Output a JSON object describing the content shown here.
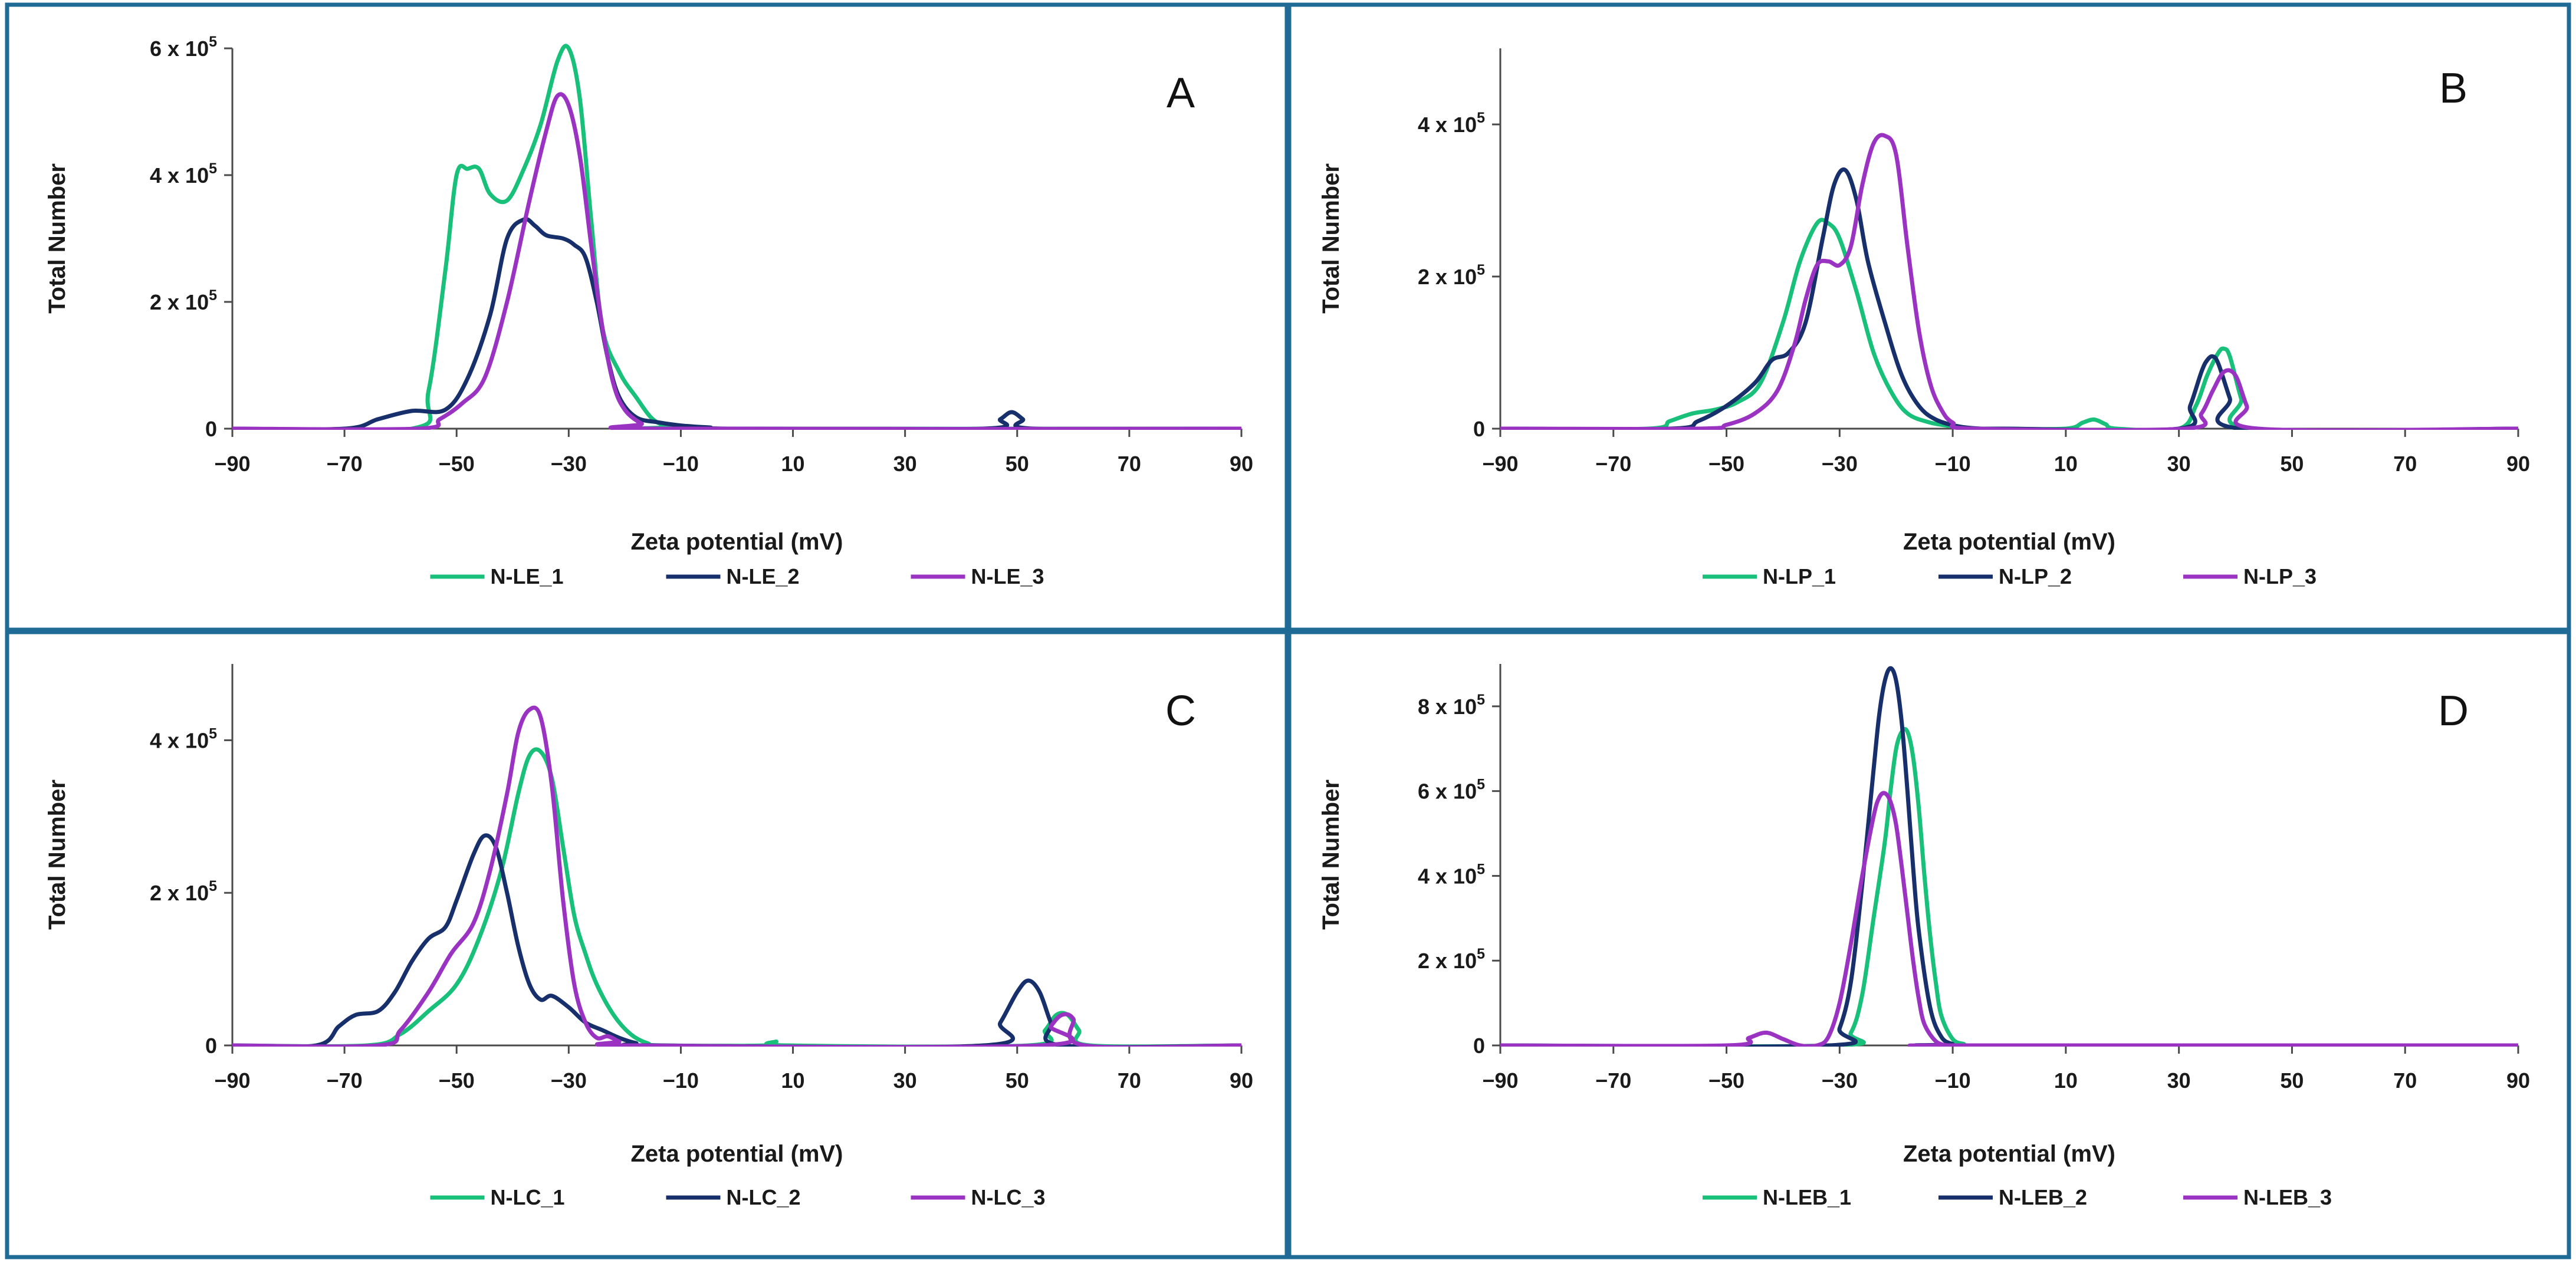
{
  "colors": {
    "frame": "#1f6b96",
    "series_1": "#18c07a",
    "series_2": "#17306b",
    "series_3": "#9b33c2",
    "axis": "#4a4a4a",
    "text": "#1a1a1a"
  },
  "chart_data": [
    {
      "type": "line",
      "panel": "A",
      "xlabel": "Zeta potential (mV)",
      "ylabel": "Total Number",
      "xlim": [
        -90,
        90
      ],
      "xticks": [
        -90,
        -70,
        -50,
        -30,
        -10,
        10,
        30,
        50,
        70,
        90
      ],
      "xtick_labels": [
        "−90",
        "−70",
        "−50",
        "−30",
        "−10",
        "10",
        "30",
        "50",
        "70",
        "90"
      ],
      "ylim": [
        0,
        600000
      ],
      "yticks": [
        0,
        200000,
        400000,
        600000
      ],
      "ytick_labels": [
        [
          "0",
          ""
        ],
        [
          "2 x 10",
          "5"
        ],
        [
          "4 x 10",
          "5"
        ],
        [
          "6 x 10",
          "5"
        ]
      ],
      "legend": [
        "N-LE_1",
        "N-LE_2",
        "N-LE_3"
      ],
      "series": [
        {
          "name": "N-LE_1",
          "x": [
            -90,
            -58,
            -55,
            -52,
            -50,
            -48,
            -46,
            -44,
            -41,
            -38,
            -35,
            -32,
            -30,
            -28,
            -26,
            -24,
            -21,
            -18,
            -15,
            -12,
            -9,
            90
          ],
          "y": [
            0,
            0,
            60000,
            250000,
            400000,
            410000,
            410000,
            370000,
            360000,
            410000,
            480000,
            580000,
            600000,
            520000,
            330000,
            160000,
            90000,
            50000,
            15000,
            3000,
            0,
            0
          ]
        },
        {
          "name": "N-LE_2",
          "x": [
            -90,
            -70,
            -64,
            -58,
            -52,
            -48,
            -44,
            -41,
            -38,
            -36,
            -34,
            -31,
            -29,
            -27,
            -25,
            -23,
            -21,
            -18,
            -14,
            -10,
            -5,
            0,
            44,
            47,
            49,
            51,
            53,
            90
          ],
          "y": [
            0,
            0,
            15000,
            28000,
            30000,
            80000,
            180000,
            300000,
            330000,
            320000,
            305000,
            300000,
            290000,
            270000,
            200000,
            110000,
            50000,
            18000,
            10000,
            5000,
            2000,
            0,
            0,
            15000,
            26000,
            15000,
            0,
            0
          ]
        },
        {
          "name": "N-LE_3",
          "x": [
            -90,
            -57,
            -53,
            -49,
            -45,
            -41,
            -37,
            -34,
            -32,
            -30,
            -28,
            -26,
            -24,
            -22,
            -20,
            -17,
            -14,
            90
          ],
          "y": [
            0,
            0,
            15000,
            40000,
            80000,
            200000,
            360000,
            470000,
            525000,
            510000,
            430000,
            290000,
            160000,
            70000,
            30000,
            8000,
            0,
            0
          ]
        }
      ]
    },
    {
      "type": "line",
      "panel": "B",
      "xlabel": "Zeta potential (mV)",
      "ylabel": "Total Number",
      "xlim": [
        -90,
        90
      ],
      "xticks": [
        -90,
        -70,
        -50,
        -30,
        -10,
        10,
        30,
        50,
        70,
        90
      ],
      "xtick_labels": [
        "−90",
        "−70",
        "−50",
        "−30",
        "−10",
        "10",
        "30",
        "50",
        "70",
        "90"
      ],
      "ylim": [
        0,
        500000
      ],
      "yticks": [
        0,
        200000,
        400000
      ],
      "ytick_labels": [
        [
          "0",
          ""
        ],
        [
          "2 x 10",
          "5"
        ],
        [
          "4 x 10",
          "5"
        ]
      ],
      "legend": [
        "N-LP_1",
        "N-LP_2",
        "N-LP_3"
      ],
      "series": [
        {
          "name": "N-LP_1",
          "x": [
            -90,
            -64,
            -60,
            -56,
            -52,
            -48,
            -44,
            -40,
            -37,
            -34,
            -32,
            -30,
            -27,
            -24,
            -21,
            -18,
            -14,
            -10,
            -6,
            -2,
            10,
            13,
            15,
            17,
            19,
            30,
            33,
            35,
            37,
            38,
            39,
            41,
            43,
            90
          ],
          "y": [
            0,
            0,
            10000,
            20000,
            25000,
            35000,
            60000,
            140000,
            220000,
            270000,
            270000,
            250000,
            180000,
            100000,
            50000,
            20000,
            8000,
            3000,
            0,
            0,
            0,
            8000,
            12000,
            6000,
            0,
            0,
            30000,
            70000,
            100000,
            105000,
            95000,
            40000,
            0,
            0
          ]
        },
        {
          "name": "N-LP_2",
          "x": [
            -90,
            -60,
            -55,
            -50,
            -45,
            -42,
            -39,
            -36,
            -33,
            -31,
            -29,
            -27,
            -25,
            -22,
            -19,
            -16,
            -13,
            -9,
            -5,
            -1,
            30,
            32,
            34,
            35,
            36,
            37,
            39,
            41,
            90
          ],
          "y": [
            0,
            0,
            10000,
            30000,
            60000,
            90000,
            100000,
            140000,
            250000,
            320000,
            340000,
            300000,
            220000,
            140000,
            70000,
            30000,
            12000,
            3000,
            0,
            0,
            0,
            30000,
            75000,
            90000,
            95000,
            85000,
            40000,
            0,
            0
          ]
        },
        {
          "name": "N-LP_3",
          "x": [
            -90,
            -55,
            -50,
            -45,
            -41,
            -38,
            -36,
            -34,
            -32,
            -30,
            -28,
            -26,
            -24,
            -22,
            -20,
            -18,
            -16,
            -14,
            -12,
            -10,
            -6,
            31,
            34,
            36,
            38,
            40,
            42,
            44,
            90
          ],
          "y": [
            0,
            0,
            5000,
            20000,
            50000,
            110000,
            170000,
            215000,
            220000,
            215000,
            240000,
            320000,
            375000,
            385000,
            360000,
            240000,
            130000,
            60000,
            25000,
            8000,
            0,
            0,
            20000,
            50000,
            75000,
            70000,
            30000,
            0,
            0
          ]
        }
      ]
    },
    {
      "type": "line",
      "panel": "C",
      "xlabel": "Zeta potential (mV)",
      "ylabel": "Total Number",
      "xlim": [
        -90,
        90
      ],
      "xticks": [
        -90,
        -70,
        -50,
        -30,
        -10,
        10,
        30,
        50,
        70,
        90
      ],
      "xtick_labels": [
        "−90",
        "−70",
        "−50",
        "−30",
        "−10",
        "10",
        "30",
        "50",
        "70",
        "90"
      ],
      "ylim": [
        0,
        500000
      ],
      "yticks": [
        0,
        200000,
        400000
      ],
      "ytick_labels": [
        [
          "0",
          ""
        ],
        [
          "2 x 10",
          "5"
        ],
        [
          "4 x 10",
          "5"
        ]
      ],
      "legend": [
        "N-LC_1",
        "N-LC_2",
        "N-LC_3"
      ],
      "series": [
        {
          "name": "N-LC_1",
          "x": [
            -90,
            -66,
            -60,
            -55,
            -50,
            -46,
            -42,
            -39,
            -37,
            -35,
            -33,
            -31,
            -29,
            -27,
            -25,
            -22,
            -19,
            -16,
            -13,
            5,
            7,
            9,
            52,
            55,
            57,
            59,
            61,
            63,
            90
          ],
          "y": [
            0,
            0,
            15000,
            45000,
            80000,
            140000,
            230000,
            330000,
            380000,
            385000,
            350000,
            260000,
            170000,
            120000,
            80000,
            40000,
            15000,
            3000,
            0,
            0,
            5000,
            0,
            0,
            20000,
            40000,
            40000,
            20000,
            0,
            0
          ]
        },
        {
          "name": "N-LC_2",
          "x": [
            -90,
            -75,
            -71,
            -68,
            -64,
            -61,
            -58,
            -55,
            -52,
            -50,
            -47,
            -45,
            -43,
            -41,
            -39,
            -37,
            -35,
            -33,
            -30,
            -27,
            -24,
            -21,
            -18,
            -15,
            44,
            47,
            50,
            52,
            54,
            56,
            58,
            90
          ],
          "y": [
            0,
            0,
            25000,
            40000,
            45000,
            70000,
            110000,
            140000,
            155000,
            190000,
            250000,
            275000,
            260000,
            200000,
            130000,
            80000,
            60000,
            65000,
            50000,
            30000,
            20000,
            10000,
            3000,
            0,
            0,
            30000,
            70000,
            85000,
            70000,
            30000,
            0,
            0
          ]
        },
        {
          "name": "N-LC_3",
          "x": [
            -90,
            -64,
            -60,
            -55,
            -51,
            -47,
            -44,
            -41,
            -39,
            -37,
            -35,
            -33,
            -31,
            -29,
            -27,
            -25,
            -23,
            -21,
            -19,
            54,
            56,
            58,
            60,
            62,
            90
          ],
          "y": [
            0,
            0,
            20000,
            70000,
            120000,
            160000,
            230000,
            330000,
            410000,
            440000,
            430000,
            340000,
            190000,
            80000,
            30000,
            10000,
            12000,
            5000,
            0,
            0,
            25000,
            40000,
            35000,
            0,
            0
          ]
        }
      ]
    },
    {
      "type": "line",
      "panel": "D",
      "xlabel": "Zeta potential (mV)",
      "ylabel": "Total Number",
      "xlim": [
        -90,
        90
      ],
      "xticks": [
        -90,
        -70,
        -50,
        -30,
        -10,
        10,
        30,
        50,
        70,
        90
      ],
      "xtick_labels": [
        "−90",
        "−70",
        "−50",
        "−30",
        "−10",
        "10",
        "30",
        "50",
        "70",
        "90"
      ],
      "ylim": [
        0,
        900000
      ],
      "yticks": [
        0,
        200000,
        400000,
        600000,
        800000
      ],
      "ytick_labels": [
        [
          "0",
          ""
        ],
        [
          "2 x 10",
          "5"
        ],
        [
          "4 x 10",
          "5"
        ],
        [
          "6 x 10",
          "5"
        ],
        [
          "8 x 10",
          "5"
        ]
      ],
      "legend": [
        "N-LEB_1",
        "N-LEB_2",
        "N-LEB_3"
      ],
      "series": [
        {
          "name": "N-LEB_1",
          "x": [
            -90,
            -31,
            -28,
            -26,
            -24,
            -22,
            -21,
            -20,
            -19,
            -18,
            -17,
            -16,
            -15,
            -14,
            -13,
            -12,
            -10,
            -8,
            -7,
            90
          ],
          "y": [
            0,
            0,
            30000,
            120000,
            300000,
            480000,
            600000,
            700000,
            740000,
            740000,
            680000,
            560000,
            400000,
            260000,
            150000,
            70000,
            15000,
            3000,
            0,
            0
          ]
        },
        {
          "name": "N-LEB_2",
          "x": [
            -90,
            -32,
            -30,
            -28,
            -26,
            -24,
            -23,
            -22,
            -21,
            -20,
            -19,
            -18,
            -17,
            -16,
            -14,
            -12,
            -10,
            -9,
            90
          ],
          "y": [
            0,
            0,
            40000,
            150000,
            380000,
            650000,
            780000,
            860000,
            890000,
            860000,
            760000,
            600000,
            420000,
            270000,
            90000,
            20000,
            3000,
            0,
            0
          ]
        },
        {
          "name": "N-LEB_3",
          "x": [
            -90,
            -50,
            -46,
            -43,
            -40,
            -37,
            -34,
            -32,
            -30,
            -28,
            -26,
            -24,
            -23,
            -22,
            -21,
            -20,
            -19,
            -18,
            -17,
            -16,
            -15,
            -13,
            -11,
            -10,
            90
          ],
          "y": [
            0,
            0,
            18000,
            30000,
            15000,
            0,
            0,
            20000,
            100000,
            240000,
            400000,
            540000,
            585000,
            595000,
            575000,
            520000,
            420000,
            310000,
            200000,
            110000,
            50000,
            10000,
            0,
            0,
            0
          ]
        }
      ]
    }
  ]
}
